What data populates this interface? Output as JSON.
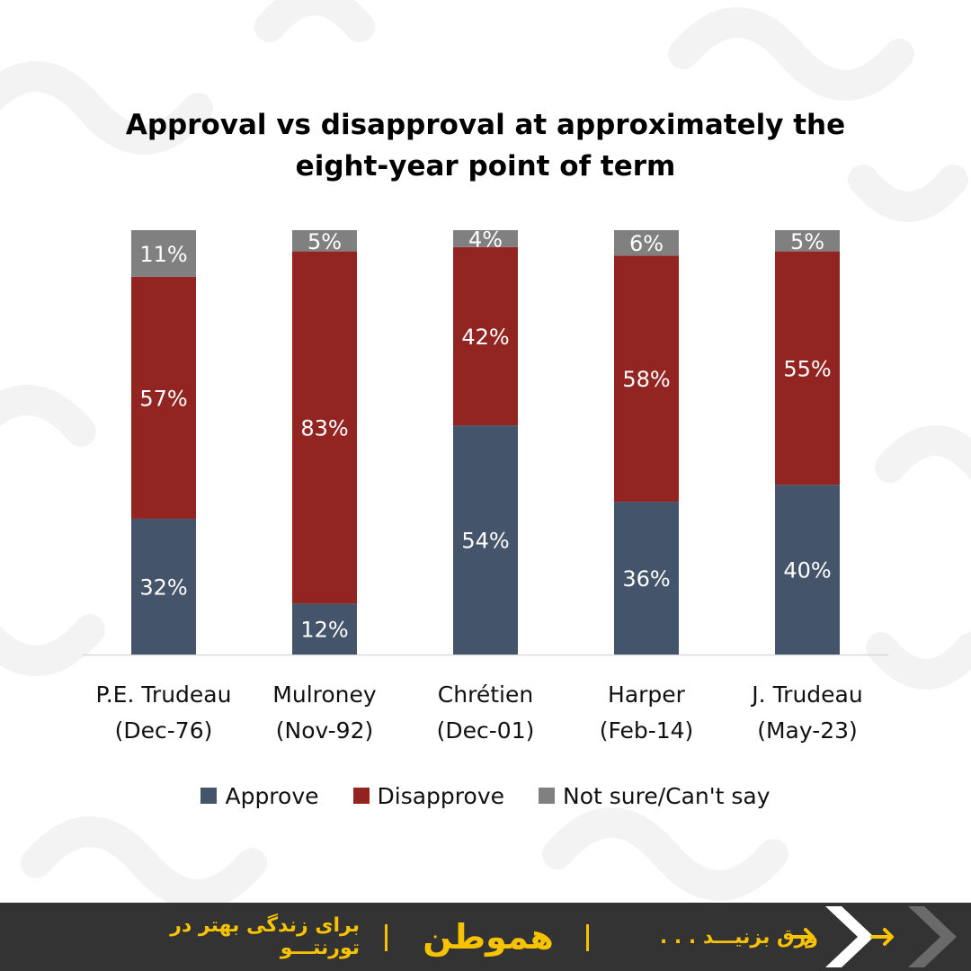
{
  "colors": {
    "approve": "#44546A",
    "disapprove": "#922521",
    "not_sure": "#808080",
    "footer_bg": "#333333",
    "accent": "#F7C300"
  },
  "chart_data": {
    "type": "bar",
    "stacked": true,
    "title": "Approval vs disapproval at approximately the eight-year point of term",
    "title_lines": [
      "Approval vs disapproval at approximately the",
      "eight-year point of term"
    ],
    "categories": [
      [
        "P.E. Trudeau",
        "(Dec-76)"
      ],
      [
        "Mulroney",
        "(Nov-92)"
      ],
      [
        "Chrétien",
        "(Dec-01)"
      ],
      [
        "Harper",
        "(Feb-14)"
      ],
      [
        "J. Trudeau",
        "(May-23)"
      ]
    ],
    "series": [
      {
        "name": "Approve",
        "values": [
          32,
          12,
          54,
          36,
          40
        ]
      },
      {
        "name": "Disapprove",
        "values": [
          57,
          83,
          42,
          58,
          55
        ]
      },
      {
        "name": "Not sure/Can't say",
        "values": [
          11,
          5,
          4,
          6,
          5
        ]
      }
    ],
    "value_suffix": "%",
    "ylim": [
      0,
      100
    ],
    "grid": false,
    "legend_position": "bottom"
  },
  "legend": {
    "approve": "Approve",
    "disapprove": "Disapprove",
    "not_sure": "Not sure/Can't say"
  },
  "footer": {
    "brand": "هموطن",
    "tagline": "برای زندگی بهتر در تورنتـــو",
    "swipe": "ورق بزنیـــد . . .",
    "arrow_icon": "arrow-right-icon",
    "chevron_icon": "chevron-right-icon"
  }
}
